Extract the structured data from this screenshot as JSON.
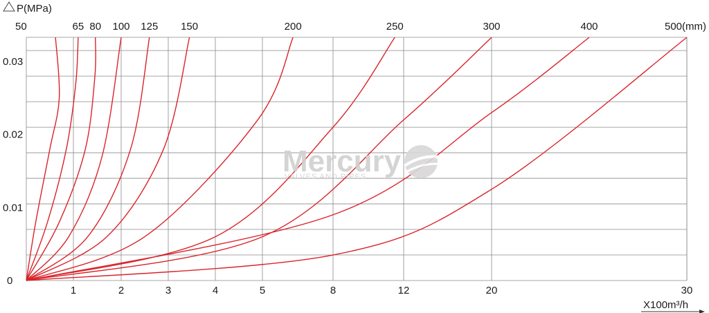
{
  "chart_data": {
    "type": "line",
    "title": "",
    "ylabel": "P(MPa)",
    "xlabel": "X100m³/h",
    "x_tick_labels": [
      "1",
      "2",
      "3",
      "4",
      "5",
      "8",
      "12",
      "20",
      "30"
    ],
    "y_tick_labels": [
      "0",
      "0.01",
      "0.02",
      "0.03"
    ],
    "ylim": [
      0,
      0.0335
    ],
    "size_unit_label": "(mm)",
    "grid": true,
    "line_color": "#d9232a",
    "series": [
      {
        "name": "50",
        "size_label": "50",
        "x": [
          0,
          0.2,
          0.5,
          0.7,
          0.62
        ],
        "y": [
          0,
          0.008,
          0.018,
          0.025,
          0.0333
        ]
      },
      {
        "name": "65",
        "size_label": "65",
        "x": [
          0,
          0.45,
          0.85,
          1.05,
          1.1
        ],
        "y": [
          0,
          0.008,
          0.018,
          0.027,
          0.0333
        ]
      },
      {
        "name": "80",
        "size_label": "80",
        "x": [
          0,
          0.7,
          1.25,
          1.45,
          1.46
        ],
        "y": [
          0,
          0.008,
          0.018,
          0.028,
          0.0333
        ]
      },
      {
        "name": "100",
        "size_label": "100",
        "x": [
          0,
          0.9,
          1.6,
          2.0
        ],
        "y": [
          0,
          0.006,
          0.017,
          0.0333
        ]
      },
      {
        "name": "125",
        "size_label": "125",
        "x": [
          0,
          1.3,
          2.2,
          2.6
        ],
        "y": [
          0,
          0.006,
          0.018,
          0.0333
        ]
      },
      {
        "name": "150",
        "size_label": "150",
        "x": [
          0,
          1.7,
          2.9,
          3.45
        ],
        "y": [
          0,
          0.006,
          0.018,
          0.0333
        ]
      },
      {
        "name": "200",
        "size_label": "200",
        "x": [
          0,
          2.5,
          4.9,
          6.3
        ],
        "y": [
          0,
          0.006,
          0.022,
          0.0333
        ]
      },
      {
        "name": "250",
        "size_label": "250",
        "x": [
          0,
          4.0,
          8.0,
          11.5
        ],
        "y": [
          0,
          0.006,
          0.021,
          0.0333
        ]
      },
      {
        "name": "300",
        "size_label": "300",
        "x": [
          0,
          5.0,
          12.0,
          20.0
        ],
        "y": [
          0,
          0.006,
          0.022,
          0.0333
        ]
      },
      {
        "name": "400",
        "size_label": "400",
        "x": [
          0,
          8.0,
          20.0,
          25.0
        ],
        "y": [
          0,
          0.009,
          0.023,
          0.0333
        ]
      },
      {
        "name": "500",
        "size_label": "500",
        "x": [
          0,
          8.0,
          20.0,
          30.0
        ],
        "y": [
          0,
          0.0035,
          0.0125,
          0.0333
        ]
      }
    ]
  },
  "watermark": {
    "brand": "Mercury",
    "tagline": "VALVES AND PIPES",
    "icon": "globe-swoosh-logo-icon"
  }
}
